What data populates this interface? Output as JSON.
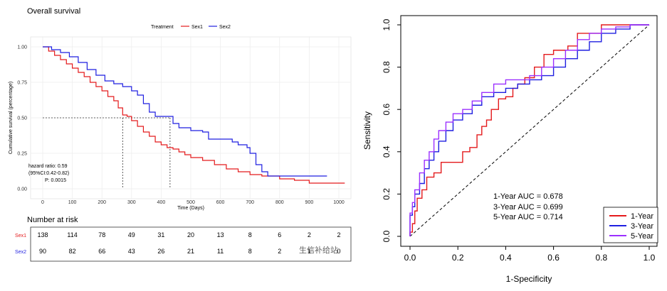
{
  "chart_data": [
    {
      "type": "line",
      "subtype": "kaplan-meier",
      "title": "Overall survival",
      "legend_title": "Treatment",
      "xlabel": "Time (Days)",
      "ylabel": "Cumulative survival (percentage)",
      "xlim": [
        0,
        1000
      ],
      "ylim": [
        0,
        1
      ],
      "x_ticks": [
        "0",
        "100",
        "200",
        "300",
        "400",
        "500",
        "600",
        "700",
        "800",
        "900",
        "1000"
      ],
      "y_ticks": [
        "0.00",
        "0.25",
        "0.50",
        "0.75",
        "1.00"
      ],
      "series": [
        {
          "name": "Sex1",
          "color": "#e41a1c",
          "points": [
            [
              0,
              1.0
            ],
            [
              20,
              0.97
            ],
            [
              40,
              0.94
            ],
            [
              60,
              0.91
            ],
            [
              80,
              0.88
            ],
            [
              100,
              0.85
            ],
            [
              120,
              0.82
            ],
            [
              140,
              0.79
            ],
            [
              160,
              0.75
            ],
            [
              180,
              0.72
            ],
            [
              200,
              0.69
            ],
            [
              220,
              0.65
            ],
            [
              240,
              0.62
            ],
            [
              255,
              0.57
            ],
            [
              270,
              0.52
            ],
            [
              285,
              0.51
            ],
            [
              300,
              0.48
            ],
            [
              320,
              0.44
            ],
            [
              340,
              0.4
            ],
            [
              360,
              0.37
            ],
            [
              380,
              0.33
            ],
            [
              400,
              0.31
            ],
            [
              420,
              0.29
            ],
            [
              440,
              0.28
            ],
            [
              460,
              0.26
            ],
            [
              480,
              0.24
            ],
            [
              500,
              0.22
            ],
            [
              540,
              0.2
            ],
            [
              580,
              0.17
            ],
            [
              620,
              0.14
            ],
            [
              660,
              0.12
            ],
            [
              700,
              0.1
            ],
            [
              740,
              0.09
            ],
            [
              800,
              0.07
            ],
            [
              850,
              0.06
            ],
            [
              900,
              0.04
            ],
            [
              960,
              0.04
            ],
            [
              1020,
              0.04
            ]
          ]
        },
        {
          "name": "Sex2",
          "color": "#1f1fe0",
          "points": [
            [
              0,
              1.0
            ],
            [
              30,
              0.98
            ],
            [
              60,
              0.96
            ],
            [
              90,
              0.93
            ],
            [
              120,
              0.89
            ],
            [
              150,
              0.84
            ],
            [
              180,
              0.8
            ],
            [
              210,
              0.76
            ],
            [
              240,
              0.74
            ],
            [
              270,
              0.72
            ],
            [
              300,
              0.69
            ],
            [
              320,
              0.66
            ],
            [
              340,
              0.6
            ],
            [
              360,
              0.54
            ],
            [
              380,
              0.51
            ],
            [
              430,
              0.51
            ],
            [
              440,
              0.46
            ],
            [
              460,
              0.43
            ],
            [
              500,
              0.41
            ],
            [
              540,
              0.4
            ],
            [
              560,
              0.35
            ],
            [
              600,
              0.35
            ],
            [
              640,
              0.33
            ],
            [
              660,
              0.31
            ],
            [
              690,
              0.29
            ],
            [
              700,
              0.25
            ],
            [
              720,
              0.17
            ],
            [
              740,
              0.12
            ],
            [
              760,
              0.09
            ],
            [
              800,
              0.09
            ],
            [
              960,
              0.09
            ]
          ]
        }
      ],
      "median_lines": {
        "y": 0.5,
        "x_values": [
          270,
          430
        ]
      },
      "annotation": [
        "hazard ratio: 0.59",
        "(95%CI:0.42-0.82)",
        "P: 0.0015"
      ],
      "risk_table": {
        "title": "Number at risk",
        "rows": [
          {
            "name": "Sex1",
            "color": "#e41a1c",
            "values": [
              "138",
              "114",
              "78",
              "49",
              "31",
              "20",
              "13",
              "8",
              "6",
              "2",
              "2"
            ]
          },
          {
            "name": "Sex2",
            "color": "#1f1fe0",
            "values": [
              "90",
              "82",
              "66",
              "43",
              "26",
              "21",
              "11",
              "8",
              "2",
              "1",
              "0"
            ]
          }
        ]
      }
    },
    {
      "type": "line",
      "subtype": "roc",
      "xlabel": "1-Specificity",
      "ylabel": "Sensitivity",
      "xlim": [
        0,
        1
      ],
      "ylim": [
        0,
        1
      ],
      "x_ticks": [
        "0.0",
        "0.2",
        "0.4",
        "0.6",
        "0.8",
        "1.0"
      ],
      "y_ticks": [
        "0.0",
        "0.2",
        "0.4",
        "0.6",
        "0.8",
        "1.0"
      ],
      "auc_text": [
        "1-Year AUC =  0.678",
        "3-Year AUC =  0.699",
        "5-Year AUC =  0.714"
      ],
      "series": [
        {
          "name": "1-Year",
          "color": "#e41a1c",
          "points": [
            [
              0,
              0
            ],
            [
              0.01,
              0.02
            ],
            [
              0.02,
              0.06
            ],
            [
              0.03,
              0.12
            ],
            [
              0.05,
              0.18
            ],
            [
              0.07,
              0.22
            ],
            [
              0.1,
              0.28
            ],
            [
              0.13,
              0.3
            ],
            [
              0.15,
              0.35
            ],
            [
              0.22,
              0.35
            ],
            [
              0.25,
              0.4
            ],
            [
              0.28,
              0.42
            ],
            [
              0.3,
              0.48
            ],
            [
              0.32,
              0.52
            ],
            [
              0.34,
              0.55
            ],
            [
              0.37,
              0.6
            ],
            [
              0.4,
              0.65
            ],
            [
              0.43,
              0.66
            ],
            [
              0.45,
              0.7
            ],
            [
              0.48,
              0.72
            ],
            [
              0.52,
              0.75
            ],
            [
              0.56,
              0.8
            ],
            [
              0.6,
              0.86
            ],
            [
              0.66,
              0.88
            ],
            [
              0.7,
              0.9
            ],
            [
              0.8,
              0.96
            ],
            [
              0.85,
              1.0
            ],
            [
              0.9,
              1.0
            ],
            [
              1.0,
              1.0
            ]
          ]
        },
        {
          "name": "3-Year",
          "color": "#1f1fe0",
          "points": [
            [
              0,
              0
            ],
            [
              0.01,
              0.1
            ],
            [
              0.02,
              0.14
            ],
            [
              0.04,
              0.2
            ],
            [
              0.06,
              0.25
            ],
            [
              0.08,
              0.32
            ],
            [
              0.1,
              0.36
            ],
            [
              0.12,
              0.4
            ],
            [
              0.15,
              0.45
            ],
            [
              0.18,
              0.5
            ],
            [
              0.22,
              0.55
            ],
            [
              0.26,
              0.58
            ],
            [
              0.3,
              0.62
            ],
            [
              0.35,
              0.66
            ],
            [
              0.4,
              0.68
            ],
            [
              0.45,
              0.7
            ],
            [
              0.5,
              0.72
            ],
            [
              0.55,
              0.74
            ],
            [
              0.6,
              0.76
            ],
            [
              0.65,
              0.8
            ],
            [
              0.7,
              0.84
            ],
            [
              0.75,
              0.88
            ],
            [
              0.8,
              0.92
            ],
            [
              0.86,
              0.96
            ],
            [
              0.92,
              0.98
            ],
            [
              1.0,
              1.0
            ]
          ]
        },
        {
          "name": "5-Year",
          "color": "#9b30ff",
          "points": [
            [
              0,
              0
            ],
            [
              0.01,
              0.11
            ],
            [
              0.02,
              0.16
            ],
            [
              0.04,
              0.22
            ],
            [
              0.06,
              0.3
            ],
            [
              0.08,
              0.36
            ],
            [
              0.1,
              0.4
            ],
            [
              0.12,
              0.46
            ],
            [
              0.15,
              0.5
            ],
            [
              0.18,
              0.54
            ],
            [
              0.22,
              0.58
            ],
            [
              0.26,
              0.6
            ],
            [
              0.3,
              0.64
            ],
            [
              0.35,
              0.68
            ],
            [
              0.4,
              0.72
            ],
            [
              0.45,
              0.74
            ],
            [
              0.5,
              0.74
            ],
            [
              0.55,
              0.76
            ],
            [
              0.6,
              0.8
            ],
            [
              0.65,
              0.84
            ],
            [
              0.7,
              0.88
            ],
            [
              0.75,
              0.93
            ],
            [
              0.8,
              0.96
            ],
            [
              0.86,
              0.98
            ],
            [
              0.92,
              0.99
            ],
            [
              1.0,
              1.0
            ]
          ]
        }
      ]
    }
  ],
  "watermark": "生信补给站"
}
